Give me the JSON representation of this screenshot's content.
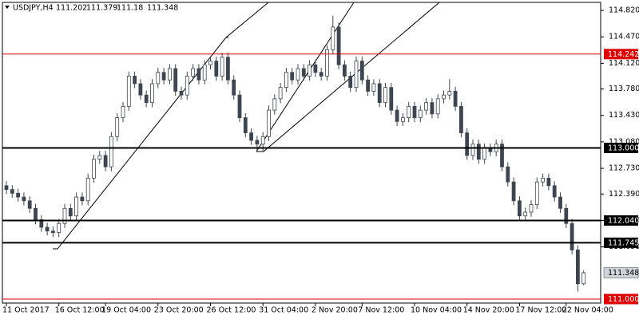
{
  "chart_data": {
    "type": "candlestick",
    "title": "USDJPY,H4",
    "ylim": [
      110.947,
      114.926
    ],
    "yticks": [
      {
        "value": 114.82,
        "label": "114.820"
      },
      {
        "value": 114.47,
        "label": "114.470"
      },
      {
        "value": 114.12,
        "label": "114.120"
      },
      {
        "value": 113.78,
        "label": "113.780"
      },
      {
        "value": 113.43,
        "label": "113.430"
      },
      {
        "value": 113.08,
        "label": "113.080"
      },
      {
        "value": 112.73,
        "label": "112.730"
      },
      {
        "value": 112.39,
        "label": "112.390"
      },
      {
        "value": 112.04,
        "label": "112.040"
      },
      {
        "value": 111.69,
        "label": "111.690"
      }
    ],
    "levels": {
      "values": [
        114.242,
        113,
        112.04,
        111.745,
        111
      ],
      "value_labels": [
        "114.242",
        "113.000",
        "112.040",
        "111.745",
        "111.000"
      ],
      "colors": [
        "#e00000",
        "#000000",
        "#000000",
        "#000000",
        "#e00000"
      ]
    },
    "up_color": "#ffffff",
    "down_color": "#3d4650",
    "wick_color": "#3d4650",
    "categories": [
      "11 Oct 2017",
      null,
      null,
      null,
      null,
      null,
      null,
      null,
      null,
      "16 Oct 12:00",
      null,
      null,
      null,
      null,
      null,
      null,
      null,
      "19 Oct 04:00",
      null,
      null,
      null,
      null,
      null,
      null,
      null,
      null,
      "23 Oct 20:00",
      null,
      null,
      null,
      null,
      null,
      null,
      null,
      null,
      "26 Oct 12:00",
      null,
      null,
      null,
      null,
      null,
      null,
      null,
      null,
      "31 Oct 04:00",
      null,
      null,
      null,
      null,
      null,
      null,
      null,
      null,
      "2 Nov 20:00",
      null,
      null,
      null,
      null,
      null,
      null,
      null,
      "7 Nov 12:00",
      null,
      null,
      null,
      null,
      null,
      null,
      null,
      null,
      "10 Nov 04:00",
      null,
      null,
      null,
      null,
      null,
      null,
      null,
      null,
      "14 Nov 20:00",
      null,
      null,
      null,
      null,
      null,
      null,
      null,
      null,
      "17 Nov 12:00",
      null,
      null,
      null,
      null,
      null,
      null,
      null,
      "22 Nov 04:00",
      null,
      null,
      null
    ],
    "ohlc": [
      [
        112.5,
        112.56,
        112.39,
        112.45
      ],
      [
        112.45,
        112.51,
        112.34,
        112.4
      ],
      [
        112.4,
        112.46,
        112.29,
        112.35
      ],
      [
        112.35,
        112.41,
        112.24,
        112.3
      ],
      [
        112.3,
        112.36,
        112.14,
        112.2
      ],
      [
        112.2,
        112.26,
        111.99,
        112.05
      ],
      [
        112.05,
        112.11,
        111.89,
        111.95
      ],
      [
        111.95,
        112.01,
        111.84,
        111.9
      ],
      [
        111.9,
        111.96,
        111.82,
        111.88
      ],
      [
        111.88,
        112.06,
        111.82,
        112.0
      ],
      [
        112.0,
        112.26,
        111.94,
        112.2
      ],
      [
        112.2,
        112.26,
        112.04,
        112.1
      ],
      [
        112.1,
        112.41,
        112.04,
        112.35
      ],
      [
        112.35,
        112.41,
        112.24,
        112.3
      ],
      [
        112.3,
        112.66,
        112.24,
        112.6
      ],
      [
        112.6,
        112.91,
        112.54,
        112.85
      ],
      [
        112.85,
        112.96,
        112.79,
        112.9
      ],
      [
        112.9,
        112.96,
        112.69,
        112.75
      ],
      [
        112.75,
        113.21,
        112.69,
        113.15
      ],
      [
        113.15,
        113.46,
        113.09,
        113.4
      ],
      [
        113.4,
        113.61,
        113.34,
        113.55
      ],
      [
        113.55,
        114.01,
        113.49,
        113.95
      ],
      [
        113.95,
        114.01,
        113.79,
        113.85
      ],
      [
        113.85,
        113.91,
        113.64,
        113.7
      ],
      [
        113.7,
        113.76,
        113.54,
        113.6
      ],
      [
        113.6,
        113.91,
        113.54,
        113.85
      ],
      [
        113.85,
        114.06,
        113.79,
        114.0
      ],
      [
        114.0,
        114.06,
        113.84,
        113.9
      ],
      [
        113.9,
        114.11,
        113.84,
        114.05
      ],
      [
        114.05,
        114.11,
        113.69,
        113.75
      ],
      [
        113.75,
        113.81,
        113.64,
        113.7
      ],
      [
        113.7,
        114.01,
        113.64,
        113.95
      ],
      [
        113.95,
        114.11,
        113.89,
        114.05
      ],
      [
        114.05,
        114.11,
        113.84,
        113.9
      ],
      [
        113.9,
        114.16,
        113.84,
        114.1
      ],
      [
        114.1,
        114.21,
        114.04,
        114.15
      ],
      [
        114.15,
        114.21,
        113.89,
        113.95
      ],
      [
        113.95,
        114.26,
        113.89,
        114.2
      ],
      [
        114.2,
        114.26,
        113.84,
        113.9
      ],
      [
        113.9,
        113.96,
        113.64,
        113.7
      ],
      [
        113.7,
        113.76,
        113.34,
        113.4
      ],
      [
        113.4,
        113.46,
        113.14,
        113.2
      ],
      [
        113.2,
        113.26,
        113.04,
        113.1
      ],
      [
        113.1,
        113.16,
        112.96,
        113.05
      ],
      [
        113.05,
        113.21,
        112.95,
        113.15
      ],
      [
        113.15,
        113.56,
        113.09,
        113.5
      ],
      [
        113.5,
        113.71,
        113.44,
        113.65
      ],
      [
        113.65,
        113.86,
        113.59,
        113.8
      ],
      [
        113.8,
        114.06,
        113.74,
        114.0
      ],
      [
        114.0,
        114.06,
        113.84,
        113.9
      ],
      [
        113.9,
        114.11,
        113.84,
        114.05
      ],
      [
        114.05,
        114.11,
        113.89,
        113.95
      ],
      [
        113.95,
        114.16,
        113.89,
        114.1
      ],
      [
        114.1,
        114.16,
        113.94,
        114.0
      ],
      [
        114.0,
        114.06,
        113.89,
        113.95
      ],
      [
        113.95,
        114.36,
        113.89,
        114.3
      ],
      [
        114.3,
        114.75,
        114.24,
        114.6
      ],
      [
        114.6,
        114.66,
        114.04,
        114.1
      ],
      [
        114.1,
        114.16,
        113.89,
        113.95
      ],
      [
        113.95,
        114.01,
        113.74,
        113.8
      ],
      [
        113.8,
        114.21,
        113.74,
        114.15
      ],
      [
        114.15,
        114.21,
        113.84,
        113.9
      ],
      [
        113.9,
        113.96,
        113.69,
        113.75
      ],
      [
        113.75,
        113.91,
        113.69,
        113.85
      ],
      [
        113.85,
        113.91,
        113.54,
        113.6
      ],
      [
        113.6,
        113.86,
        113.54,
        113.8
      ],
      [
        113.8,
        113.86,
        113.44,
        113.5
      ],
      [
        113.5,
        113.56,
        113.29,
        113.35
      ],
      [
        113.35,
        113.46,
        113.29,
        113.4
      ],
      [
        113.4,
        113.61,
        113.34,
        113.55
      ],
      [
        113.55,
        113.61,
        113.34,
        113.4
      ],
      [
        113.4,
        113.56,
        113.34,
        113.5
      ],
      [
        113.5,
        113.66,
        113.44,
        113.6
      ],
      [
        113.6,
        113.66,
        113.39,
        113.45
      ],
      [
        113.45,
        113.71,
        113.39,
        113.65
      ],
      [
        113.65,
        113.76,
        113.59,
        113.7
      ],
      [
        113.7,
        113.91,
        113.64,
        113.75
      ],
      [
        113.75,
        113.81,
        113.49,
        113.55
      ],
      [
        113.55,
        113.61,
        113.14,
        113.2
      ],
      [
        113.2,
        113.26,
        112.84,
        112.9
      ],
      [
        112.9,
        113.11,
        112.84,
        113.05
      ],
      [
        113.05,
        113.11,
        112.79,
        112.85
      ],
      [
        112.85,
        113.06,
        112.79,
        113.0
      ],
      [
        113.0,
        113.06,
        112.89,
        112.95
      ],
      [
        112.95,
        113.11,
        112.89,
        113.05
      ],
      [
        113.05,
        113.11,
        112.69,
        112.75
      ],
      [
        112.75,
        112.81,
        112.49,
        112.55
      ],
      [
        112.55,
        112.61,
        112.24,
        112.3
      ],
      [
        112.3,
        112.36,
        112.04,
        112.1
      ],
      [
        112.1,
        112.21,
        112.04,
        112.15
      ],
      [
        112.15,
        112.31,
        112.09,
        112.25
      ],
      [
        112.25,
        112.61,
        112.19,
        112.55
      ],
      [
        112.55,
        112.66,
        112.49,
        112.6
      ],
      [
        112.6,
        112.66,
        112.44,
        112.5
      ],
      [
        112.5,
        112.56,
        112.29,
        112.35
      ],
      [
        112.35,
        112.41,
        112.14,
        112.2
      ],
      [
        112.2,
        112.26,
        111.94,
        112.0
      ],
      [
        112.0,
        112.06,
        111.59,
        111.65
      ],
      [
        111.65,
        111.71,
        111.1,
        111.202
      ],
      [
        111.202,
        111.379,
        111.18,
        111.348
      ]
    ]
  }
}
